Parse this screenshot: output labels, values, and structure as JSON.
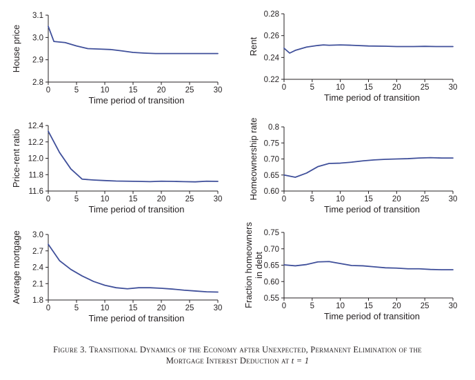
{
  "caption": {
    "line1": "Figure 3. Transitional Dynamics of the Economy after Unexpected, Permanent Elimination of the",
    "line2_prefix": "Mortgage Interest Deduction at ",
    "line2_math": "t = 1"
  },
  "colors": {
    "series": "#3f4f9a",
    "axis": "#231f20"
  },
  "chart_data": [
    {
      "type": "line",
      "ylabel": "House price",
      "xlabel": "Time period of transition",
      "xlim": [
        0,
        30
      ],
      "ylim": [
        2.8,
        3.1
      ],
      "xticks": [
        0,
        5,
        10,
        15,
        20,
        25,
        30
      ],
      "yticks": [
        "2.8",
        "2.9",
        "3.0",
        "3.1"
      ],
      "x": [
        0,
        1,
        3,
        5,
        7,
        9,
        11,
        13,
        15,
        17,
        19,
        21,
        23,
        25,
        27,
        29,
        30
      ],
      "values": [
        3.05,
        2.982,
        2.977,
        2.962,
        2.95,
        2.948,
        2.946,
        2.94,
        2.933,
        2.93,
        2.928,
        2.928,
        2.928,
        2.928,
        2.928,
        2.928,
        2.928
      ]
    },
    {
      "type": "line",
      "ylabel": "Rent",
      "xlabel": "Time period of transition",
      "xlim": [
        0,
        30
      ],
      "ylim": [
        0.22,
        0.28
      ],
      "xticks": [
        0,
        5,
        10,
        15,
        20,
        25,
        30
      ],
      "yticks": [
        "0.22",
        "0.24",
        "0.26",
        "0.28"
      ],
      "x": [
        0,
        1,
        2,
        4,
        6,
        7,
        8,
        10,
        12,
        15,
        18,
        20,
        23,
        25,
        27,
        30
      ],
      "values": [
        0.2485,
        0.244,
        0.2465,
        0.2495,
        0.251,
        0.2515,
        0.2512,
        0.2515,
        0.2512,
        0.2505,
        0.2503,
        0.25,
        0.25,
        0.2502,
        0.25,
        0.25
      ]
    },
    {
      "type": "line",
      "ylabel": "Price-rent ratio",
      "xlabel": "Time period of transition",
      "xlim": [
        0,
        30
      ],
      "ylim": [
        11.6,
        12.4
      ],
      "xticks": [
        0,
        5,
        10,
        15,
        20,
        25,
        30
      ],
      "yticks": [
        "11.6",
        "11.8",
        "12.0",
        "12.2",
        "12.4"
      ],
      "x": [
        0,
        2,
        4,
        6,
        8,
        10,
        12,
        14,
        16,
        18,
        20,
        22,
        24,
        26,
        28,
        30
      ],
      "values": [
        12.33,
        12.07,
        11.87,
        11.745,
        11.735,
        11.728,
        11.722,
        11.72,
        11.718,
        11.715,
        11.72,
        11.718,
        11.715,
        11.712,
        11.72,
        11.718
      ]
    },
    {
      "type": "line",
      "ylabel": "Homeownership rate",
      "xlabel": "Time period of transition",
      "xlim": [
        0,
        30
      ],
      "ylim": [
        0.6,
        0.8
      ],
      "xticks": [
        0,
        5,
        10,
        15,
        20,
        25,
        30
      ],
      "yticks": [
        "0.60",
        "0.65",
        "0.70",
        "0.75",
        "0.8"
      ],
      "x": [
        0,
        2,
        4,
        6,
        8,
        10,
        12,
        14,
        16,
        18,
        20,
        22,
        24,
        26,
        28,
        30
      ],
      "values": [
        0.65,
        0.643,
        0.656,
        0.676,
        0.686,
        0.687,
        0.69,
        0.694,
        0.697,
        0.699,
        0.7,
        0.701,
        0.703,
        0.704,
        0.703,
        0.703
      ]
    },
    {
      "type": "line",
      "ylabel": "Average mortgage",
      "xlabel": "Time period of transition",
      "xlim": [
        0,
        30
      ],
      "ylim": [
        1.8,
        3.0
      ],
      "xticks": [
        0,
        5,
        10,
        15,
        20,
        25,
        30
      ],
      "yticks": [
        "1.8",
        "2.1",
        "2.4",
        "2.7",
        "3.0"
      ],
      "x": [
        0,
        2,
        4,
        6,
        8,
        10,
        12,
        14,
        16,
        18,
        20,
        22,
        24,
        26,
        28,
        30
      ],
      "values": [
        2.82,
        2.52,
        2.36,
        2.24,
        2.14,
        2.07,
        2.025,
        2.005,
        2.025,
        2.025,
        2.015,
        2.0,
        1.98,
        1.965,
        1.95,
        1.945
      ]
    },
    {
      "type": "line",
      "ylabel": [
        "Fraction homeowners",
        "in debt"
      ],
      "xlabel": "Time period of transition",
      "xlim": [
        0,
        30
      ],
      "ylim": [
        0.55,
        0.75
      ],
      "xticks": [
        0,
        5,
        10,
        15,
        20,
        25,
        30
      ],
      "yticks": [
        "0.55",
        "0.60",
        "0.65",
        "0.70",
        "0.75"
      ],
      "x": [
        0,
        2,
        4,
        6,
        8,
        10,
        12,
        14,
        16,
        18,
        20,
        22,
        24,
        26,
        28,
        30
      ],
      "values": [
        0.651,
        0.648,
        0.652,
        0.66,
        0.661,
        0.655,
        0.649,
        0.648,
        0.645,
        0.642,
        0.641,
        0.639,
        0.639,
        0.637,
        0.636,
        0.636
      ]
    }
  ]
}
